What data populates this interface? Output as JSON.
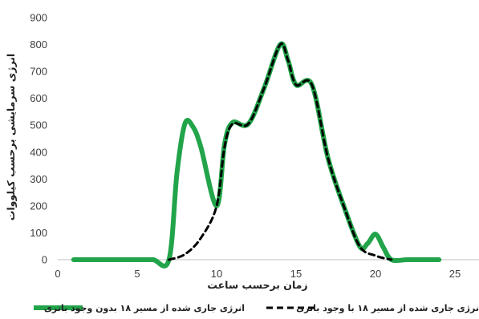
{
  "chart_data": {
    "type": "line",
    "xlabel": "زمان برحسب ساعت",
    "ylabel": "انرژی سرمایشی برحسب کیلووات",
    "xlim": [
      0,
      25
    ],
    "ylim": [
      0,
      900
    ],
    "x_ticks": [
      0,
      5,
      10,
      15,
      20,
      25
    ],
    "y_ticks": [
      0,
      100,
      200,
      300,
      400,
      500,
      600,
      700,
      800,
      900
    ],
    "grid": false,
    "legend_position": "bottom",
    "series": [
      {
        "name": "انرژی جاری شده از مسیر ۱۸ بدون وجود باتری",
        "color": "#22a44a",
        "style": "solid",
        "x": [
          1,
          2,
          3,
          4,
          5,
          6,
          7,
          7.5,
          8,
          8.5,
          9,
          10,
          10.5,
          11,
          12,
          13,
          14,
          14.5,
          15,
          16,
          17,
          18,
          19,
          19.5,
          20,
          20.5,
          21,
          22,
          23,
          24
        ],
        "y": [
          0,
          0,
          0,
          0,
          0,
          0,
          0,
          320,
          505,
          495,
          420,
          200,
          430,
          510,
          505,
          640,
          800,
          740,
          650,
          650,
          380,
          200,
          50,
          60,
          95,
          45,
          0,
          0,
          0,
          0
        ]
      },
      {
        "name": "نرژی جاری شده از مسیر ۱۸ با وجود باتری",
        "color": "#000000",
        "style": "dashed",
        "x": [
          7,
          8,
          9,
          10,
          10.5,
          11,
          12,
          13,
          14,
          14.5,
          15,
          16,
          17,
          18,
          19,
          20,
          21
        ],
        "y": [
          0,
          20,
          80,
          200,
          420,
          505,
          505,
          640,
          800,
          740,
          650,
          650,
          380,
          200,
          50,
          15,
          0
        ]
      }
    ]
  }
}
